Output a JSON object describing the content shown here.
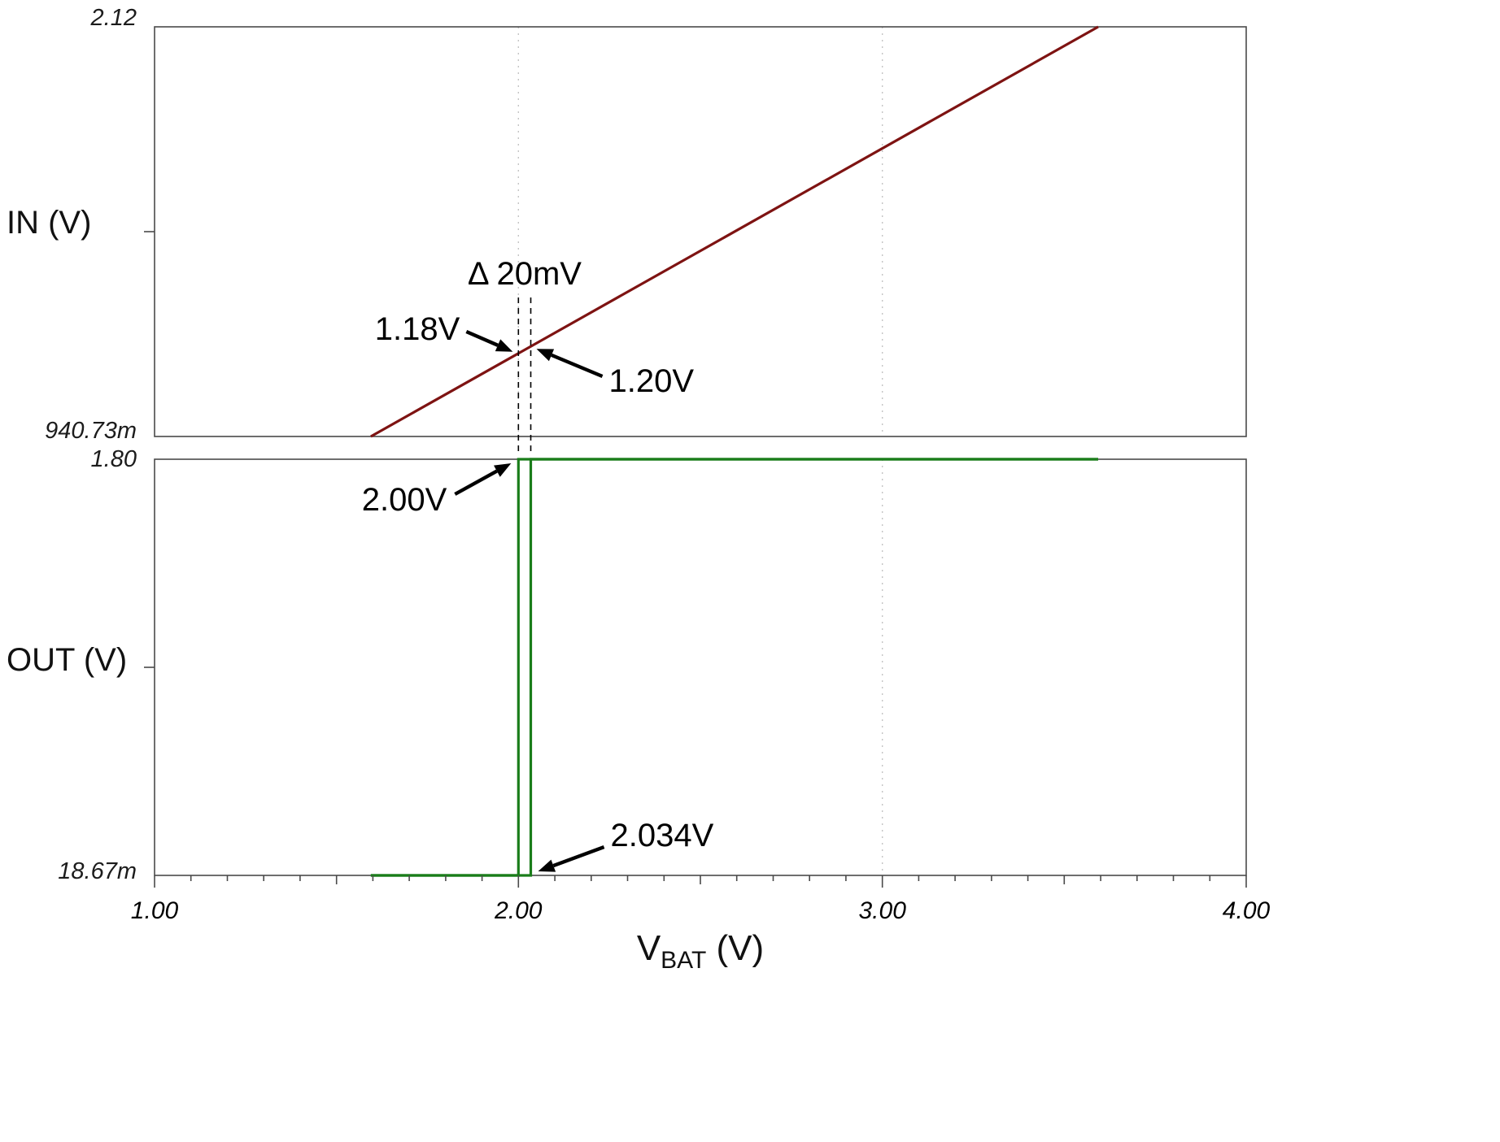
{
  "x_axis": {
    "label_main": "V",
    "label_sub": "BAT",
    "label_unit": " (V)",
    "lim": [
      1.0,
      4.0
    ],
    "major_ticks": [
      1.0,
      2.0,
      3.0,
      4.0
    ],
    "tick_labels": [
      "1.00",
      "2.00",
      "3.00",
      "4.00"
    ],
    "minor_step": 0.1,
    "gridlines": [
      2.0,
      3.0
    ]
  },
  "chart_data": [
    {
      "id": "in-panel",
      "type": "line",
      "ylabel": "IN (V)",
      "xlabel": "V_BAT (V)",
      "xlim": [
        1.0,
        4.0
      ],
      "ylim": [
        0.94073,
        2.12
      ],
      "grid": "dotted vertical at 2.00 and 3.00",
      "y_tick_labels": {
        "top": "2.12",
        "bottom": "940.73m"
      },
      "series": [
        {
          "name": "in-trace",
          "color": "#7e1312",
          "points": [
            [
              1.5945,
              0.94073
            ],
            [
              3.5932,
              2.12
            ]
          ]
        }
      ]
    },
    {
      "id": "out-panel",
      "type": "line",
      "ylabel": "OUT (V)",
      "xlabel": "V_BAT (V)",
      "xlim": [
        1.0,
        4.0
      ],
      "ylim": [
        0.01867,
        1.8
      ],
      "grid": "dotted vertical at 2.00 and 3.00",
      "y_tick_labels": {
        "top": "1.80",
        "bottom": "18.67m"
      },
      "series": [
        {
          "name": "out-trace-rising-sweep",
          "color": "#1a7d1a",
          "points": [
            [
              1.5945,
              0.01867
            ],
            [
              2.034,
              0.01867
            ],
            [
              2.034,
              1.8
            ],
            [
              3.5932,
              1.8
            ]
          ]
        },
        {
          "name": "out-trace-falling-sweep",
          "color": "#1a7d1a",
          "points": [
            [
              3.5932,
              1.8
            ],
            [
              2.0,
              1.8
            ],
            [
              2.0,
              0.01867
            ],
            [
              1.5945,
              0.01867
            ]
          ]
        }
      ]
    }
  ],
  "thresholds": {
    "vbat_fall": 2.0,
    "vbat_rise": 2.034,
    "in_at_fall": 1.18,
    "in_at_rise": 1.2,
    "labels": {
      "delta": "Δ 20mV",
      "in_fall": "1.18V",
      "in_rise": "1.20V",
      "vbat_fall": "2.00V",
      "vbat_rise": "2.034V"
    }
  },
  "colors": {
    "in_trace": "#7e1312",
    "out_trace": "#1a7d1a",
    "grid": "#c4c4c4",
    "axis": "#4a4a4a",
    "annotation": "#000000",
    "background": "#ffffff"
  }
}
